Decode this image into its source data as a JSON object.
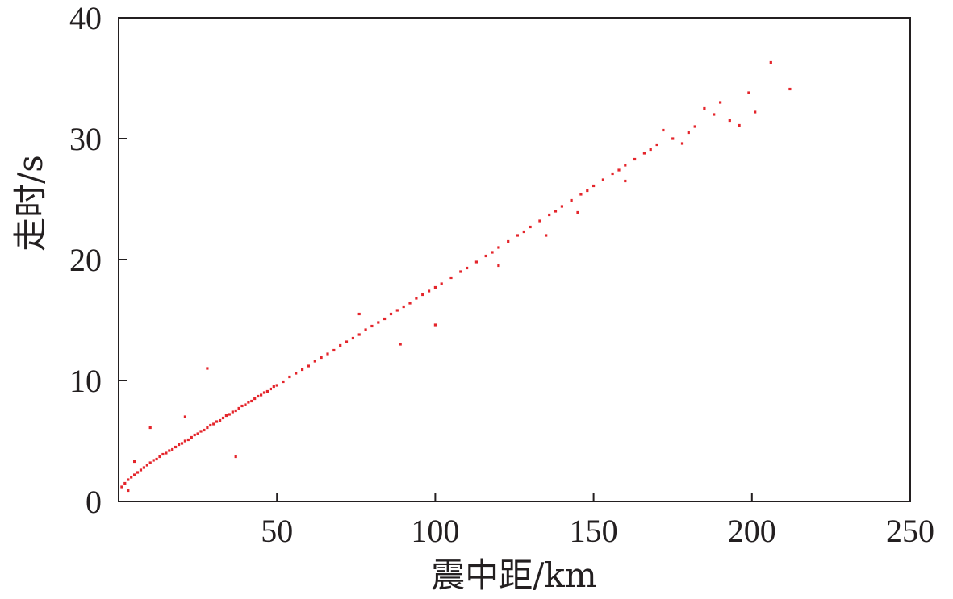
{
  "chart_data": {
    "type": "scatter",
    "xlabel": "震中距/km",
    "ylabel": "走时/s",
    "xlim": [
      0,
      250
    ],
    "ylim": [
      0,
      40
    ],
    "x_ticks": [
      50,
      100,
      150,
      200,
      250
    ],
    "y_ticks": [
      0,
      10,
      20,
      30,
      40
    ],
    "x_tick_labels": [
      "50",
      "100",
      "150",
      "200",
      "250"
    ],
    "y_tick_labels": [
      "0",
      "10",
      "20",
      "30",
      "40"
    ],
    "grid": false,
    "legend": "none",
    "point_color": "#e4252b",
    "series": [
      {
        "points": [
          [
            1,
            1.2
          ],
          [
            2,
            1.5
          ],
          [
            3,
            1.8
          ],
          [
            4,
            2.0
          ],
          [
            5,
            2.2
          ],
          [
            6,
            2.4
          ],
          [
            7,
            2.6
          ],
          [
            8,
            2.8
          ],
          [
            9,
            3.0
          ],
          [
            10,
            3.2
          ],
          [
            11,
            3.4
          ],
          [
            12,
            3.5
          ],
          [
            13,
            3.7
          ],
          [
            14,
            3.9
          ],
          [
            15,
            4.0
          ],
          [
            16,
            4.2
          ],
          [
            17,
            4.3
          ],
          [
            18,
            4.5
          ],
          [
            19,
            4.7
          ],
          [
            20,
            4.8
          ],
          [
            21,
            5.0
          ],
          [
            22,
            5.1
          ],
          [
            23,
            5.3
          ],
          [
            24,
            5.5
          ],
          [
            25,
            5.6
          ],
          [
            26,
            5.8
          ],
          [
            27,
            5.9
          ],
          [
            28,
            6.1
          ],
          [
            29,
            6.3
          ],
          [
            30,
            6.4
          ],
          [
            31,
            6.6
          ],
          [
            32,
            6.7
          ],
          [
            33,
            6.9
          ],
          [
            34,
            7.1
          ],
          [
            35,
            7.2
          ],
          [
            36,
            7.4
          ],
          [
            37,
            7.5
          ],
          [
            38,
            7.7
          ],
          [
            39,
            7.9
          ],
          [
            40,
            8.0
          ],
          [
            41,
            8.2
          ],
          [
            42,
            8.3
          ],
          [
            43,
            8.5
          ],
          [
            44,
            8.7
          ],
          [
            45,
            8.8
          ],
          [
            46,
            9.0
          ],
          [
            47,
            9.1
          ],
          [
            48,
            9.3
          ],
          [
            49,
            9.5
          ],
          [
            50,
            9.6
          ],
          [
            52,
            9.9
          ],
          [
            54,
            10.3
          ],
          [
            56,
            10.6
          ],
          [
            58,
            10.9
          ],
          [
            60,
            11.2
          ],
          [
            62,
            11.6
          ],
          [
            64,
            11.9
          ],
          [
            66,
            12.2
          ],
          [
            68,
            12.5
          ],
          [
            70,
            12.9
          ],
          [
            72,
            13.2
          ],
          [
            74,
            13.5
          ],
          [
            76,
            13.8
          ],
          [
            78,
            14.2
          ],
          [
            80,
            14.5
          ],
          [
            82,
            14.8
          ],
          [
            84,
            15.1
          ],
          [
            86,
            15.5
          ],
          [
            88,
            15.8
          ],
          [
            90,
            16.1
          ],
          [
            92,
            16.4
          ],
          [
            94,
            16.8
          ],
          [
            96,
            17.1
          ],
          [
            98,
            17.4
          ],
          [
            100,
            17.7
          ],
          [
            102,
            18.0
          ],
          [
            105,
            18.5
          ],
          [
            108,
            19.0
          ],
          [
            110,
            19.3
          ],
          [
            113,
            19.8
          ],
          [
            116,
            20.3
          ],
          [
            118,
            20.6
          ],
          [
            120,
            21.0
          ],
          [
            123,
            21.5
          ],
          [
            126,
            22.0
          ],
          [
            128,
            22.3
          ],
          [
            130,
            22.7
          ],
          [
            133,
            23.2
          ],
          [
            136,
            23.7
          ],
          [
            138,
            24.0
          ],
          [
            140,
            24.4
          ],
          [
            143,
            24.9
          ],
          [
            146,
            25.4
          ],
          [
            148,
            25.7
          ],
          [
            150,
            26.1
          ],
          [
            153,
            26.6
          ],
          [
            156,
            27.1
          ],
          [
            158,
            27.4
          ],
          [
            160,
            27.8
          ],
          [
            163,
            28.3
          ],
          [
            166,
            28.8
          ],
          [
            168,
            29.1
          ],
          [
            170,
            29.5
          ],
          [
            172,
            30.7
          ],
          [
            175,
            30.0
          ],
          [
            178,
            29.6
          ],
          [
            180,
            30.5
          ],
          [
            182,
            31.0
          ],
          [
            185,
            32.5
          ],
          [
            188,
            32.0
          ],
          [
            190,
            33.0
          ],
          [
            193,
            31.5
          ],
          [
            196,
            31.1
          ],
          [
            199,
            33.8
          ],
          [
            201,
            32.2
          ],
          [
            206,
            36.3
          ],
          [
            212,
            34.1
          ],
          [
            28,
            11.0
          ],
          [
            10,
            6.1
          ],
          [
            21,
            7.0
          ],
          [
            37,
            3.7
          ],
          [
            89,
            13.0
          ],
          [
            100,
            14.6
          ],
          [
            76,
            15.5
          ],
          [
            120,
            19.5
          ],
          [
            135,
            22.0
          ],
          [
            145,
            23.9
          ],
          [
            160,
            26.5
          ],
          [
            5,
            3.3
          ],
          [
            3,
            0.9
          ]
        ]
      }
    ]
  }
}
